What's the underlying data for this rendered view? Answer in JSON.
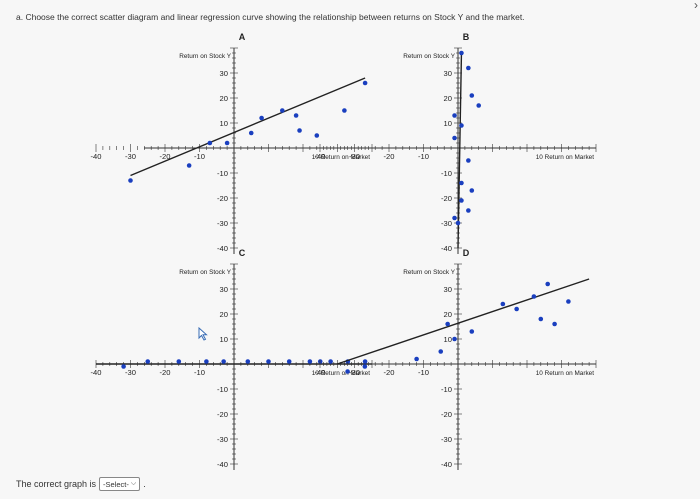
{
  "question": "a. Choose the correct scatter diagram and linear regression curve showing the relationship between returns on Stock Y and the market.",
  "answer": {
    "prompt": "The correct graph is",
    "select_value": "-Select-"
  },
  "icons": {
    "dropdown": "chevron-down-icon",
    "pointer": "mouse-pointer-icon",
    "nav": "chevron-right-icon"
  },
  "colors": {
    "points": "#1a3fbf",
    "axis": "#333333",
    "line": "#222222"
  },
  "chart_data": [
    {
      "label": "A",
      "type": "scatter",
      "ylabel": "Return on Stock Y",
      "xlabel": "10 Return on Market",
      "x_ticks": [
        "-40",
        "-30",
        "-20",
        "-10"
      ],
      "y_ticks": [
        "30",
        "20",
        "10",
        "-10",
        "-20",
        "-30",
        "-40"
      ],
      "xlim": [
        -40,
        40
      ],
      "ylim": [
        -40,
        40
      ],
      "points": [
        [
          -30,
          -13
        ],
        [
          -13,
          -7
        ],
        [
          -7,
          2
        ],
        [
          -2,
          2
        ],
        [
          5,
          6
        ],
        [
          8,
          12
        ],
        [
          14,
          15
        ],
        [
          18,
          13
        ],
        [
          19,
          7
        ],
        [
          24,
          5
        ],
        [
          32,
          15
        ],
        [
          38,
          26
        ]
      ],
      "regression": [
        [
          -30,
          -11
        ],
        [
          38,
          28
        ]
      ]
    },
    {
      "label": "B",
      "type": "scatter",
      "ylabel": "Return on Stock Y",
      "xlabel": "10 Return on Market",
      "x_ticks": [
        "-40",
        "-30",
        "-20",
        "-10"
      ],
      "y_ticks": [
        "30",
        "20",
        "10",
        "-10",
        "-20",
        "-30",
        "-40"
      ],
      "xlim": [
        -40,
        40
      ],
      "ylim": [
        -40,
        40
      ],
      "points": [
        [
          1,
          38
        ],
        [
          3,
          32
        ],
        [
          4,
          21
        ],
        [
          6,
          17
        ],
        [
          -1,
          13
        ],
        [
          1,
          9
        ],
        [
          -1,
          4
        ],
        [
          3,
          -5
        ],
        [
          1,
          -14
        ],
        [
          4,
          -17
        ],
        [
          1,
          -21
        ],
        [
          3,
          -25
        ],
        [
          -1,
          -28
        ],
        [
          0,
          -30
        ]
      ],
      "regression": [
        [
          0,
          -40
        ],
        [
          1,
          38
        ]
      ]
    },
    {
      "label": "C",
      "type": "scatter",
      "ylabel": "Return on Stock Y",
      "xlabel": "10 Return on Market",
      "x_ticks": [
        "-40",
        "-30",
        "-20",
        "-10"
      ],
      "y_ticks": [
        "30",
        "20",
        "10",
        "-10",
        "-20",
        "-30",
        "-40"
      ],
      "xlim": [
        -40,
        40
      ],
      "ylim": [
        -40,
        40
      ],
      "points": [
        [
          -32,
          -1
        ],
        [
          -25,
          1
        ],
        [
          -16,
          1
        ],
        [
          -8,
          1
        ],
        [
          -3,
          1
        ],
        [
          4,
          1
        ],
        [
          10,
          1
        ],
        [
          16,
          1
        ],
        [
          22,
          1
        ],
        [
          25,
          1
        ],
        [
          28,
          1
        ],
        [
          33,
          1
        ],
        [
          38,
          1
        ]
      ],
      "regression": [
        [
          -40,
          0
        ],
        [
          40,
          0
        ]
      ]
    },
    {
      "label": "D",
      "type": "scatter",
      "ylabel": "Return on Stock Y",
      "xlabel": "10 Return on Market",
      "x_ticks": [
        "-40",
        "-30",
        "-20",
        "-10"
      ],
      "y_ticks": [
        "30",
        "20",
        "10",
        "-10",
        "-20",
        "-30",
        "-40"
      ],
      "xlim": [
        -40,
        40
      ],
      "ylim": [
        -40,
        40
      ],
      "points": [
        [
          -32,
          -3
        ],
        [
          -27,
          -1
        ],
        [
          -12,
          2
        ],
        [
          -5,
          5
        ],
        [
          -3,
          16
        ],
        [
          -1,
          10
        ],
        [
          4,
          13
        ],
        [
          13,
          24
        ],
        [
          17,
          22
        ],
        [
          22,
          27
        ],
        [
          24,
          18
        ],
        [
          26,
          32
        ],
        [
          28,
          16
        ],
        [
          32,
          25
        ]
      ],
      "regression": [
        [
          -35,
          0
        ],
        [
          38,
          34
        ]
      ]
    }
  ]
}
